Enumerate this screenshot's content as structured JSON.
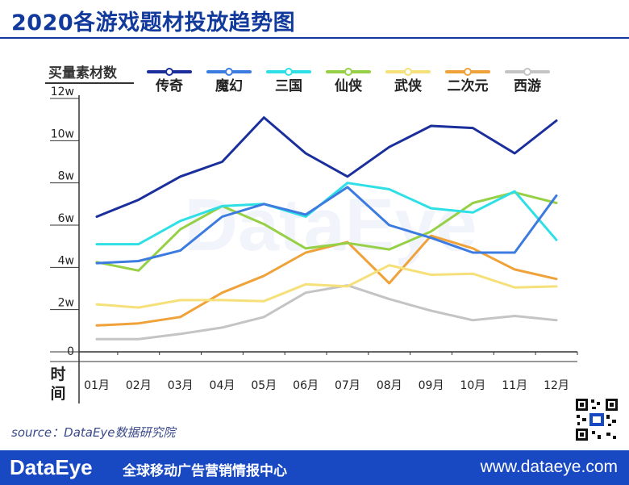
{
  "title": "2020各游戏题材投放趋势图",
  "source": "source：DataEye数据研究院",
  "footer": {
    "brand": "DataEye",
    "slogan": "全球移动广告营销情报中心",
    "url": "www.dataeye.com"
  },
  "chart_data": {
    "type": "line",
    "ylabel": "买量素材数",
    "xlabel": "时间",
    "watermark": "DataEye",
    "categories": [
      "01月",
      "02月",
      "03月",
      "04月",
      "05月",
      "06月",
      "07月",
      "08月",
      "09月",
      "10月",
      "11月",
      "12月"
    ],
    "ylim": [
      0,
      12
    ],
    "yticks": [
      "0",
      "2w",
      "4w",
      "6w",
      "8w",
      "10w",
      "12w"
    ],
    "grid": false,
    "legend_position": "top",
    "series": [
      {
        "name": "传奇",
        "color": "#1a2f9c",
        "values": [
          6.4,
          7.2,
          8.3,
          9.0,
          11.1,
          9.4,
          8.3,
          9.7,
          10.7,
          10.6,
          9.4,
          10.95
        ]
      },
      {
        "name": "魔幻",
        "color": "#3c7be0",
        "values": [
          4.2,
          4.3,
          4.8,
          6.4,
          7.0,
          6.5,
          7.8,
          6.0,
          5.4,
          4.7,
          4.7,
          7.4
        ]
      },
      {
        "name": "三国",
        "color": "#2ee0e6",
        "values": [
          5.1,
          5.1,
          6.2,
          6.9,
          7.0,
          6.4,
          8.0,
          7.7,
          6.8,
          6.6,
          7.6,
          5.3
        ]
      },
      {
        "name": "仙侠",
        "color": "#96d046",
        "values": [
          4.25,
          3.85,
          5.8,
          6.9,
          6.05,
          4.9,
          5.15,
          4.85,
          5.7,
          7.05,
          7.55,
          7.05
        ]
      },
      {
        "name": "武侠",
        "color": "#f5e07a",
        "values": [
          2.25,
          2.1,
          2.45,
          2.45,
          2.4,
          3.2,
          3.1,
          4.1,
          3.65,
          3.7,
          3.05,
          3.1
        ]
      },
      {
        "name": "二次元",
        "color": "#f0a23a",
        "values": [
          1.25,
          1.35,
          1.65,
          2.8,
          3.6,
          4.7,
          5.2,
          3.25,
          5.5,
          4.9,
          3.9,
          3.45
        ]
      },
      {
        "name": "西游",
        "color": "#c4c4c4",
        "values": [
          0.6,
          0.6,
          0.85,
          1.15,
          1.65,
          2.8,
          3.15,
          2.5,
          1.95,
          1.5,
          1.7,
          1.5
        ]
      }
    ]
  }
}
